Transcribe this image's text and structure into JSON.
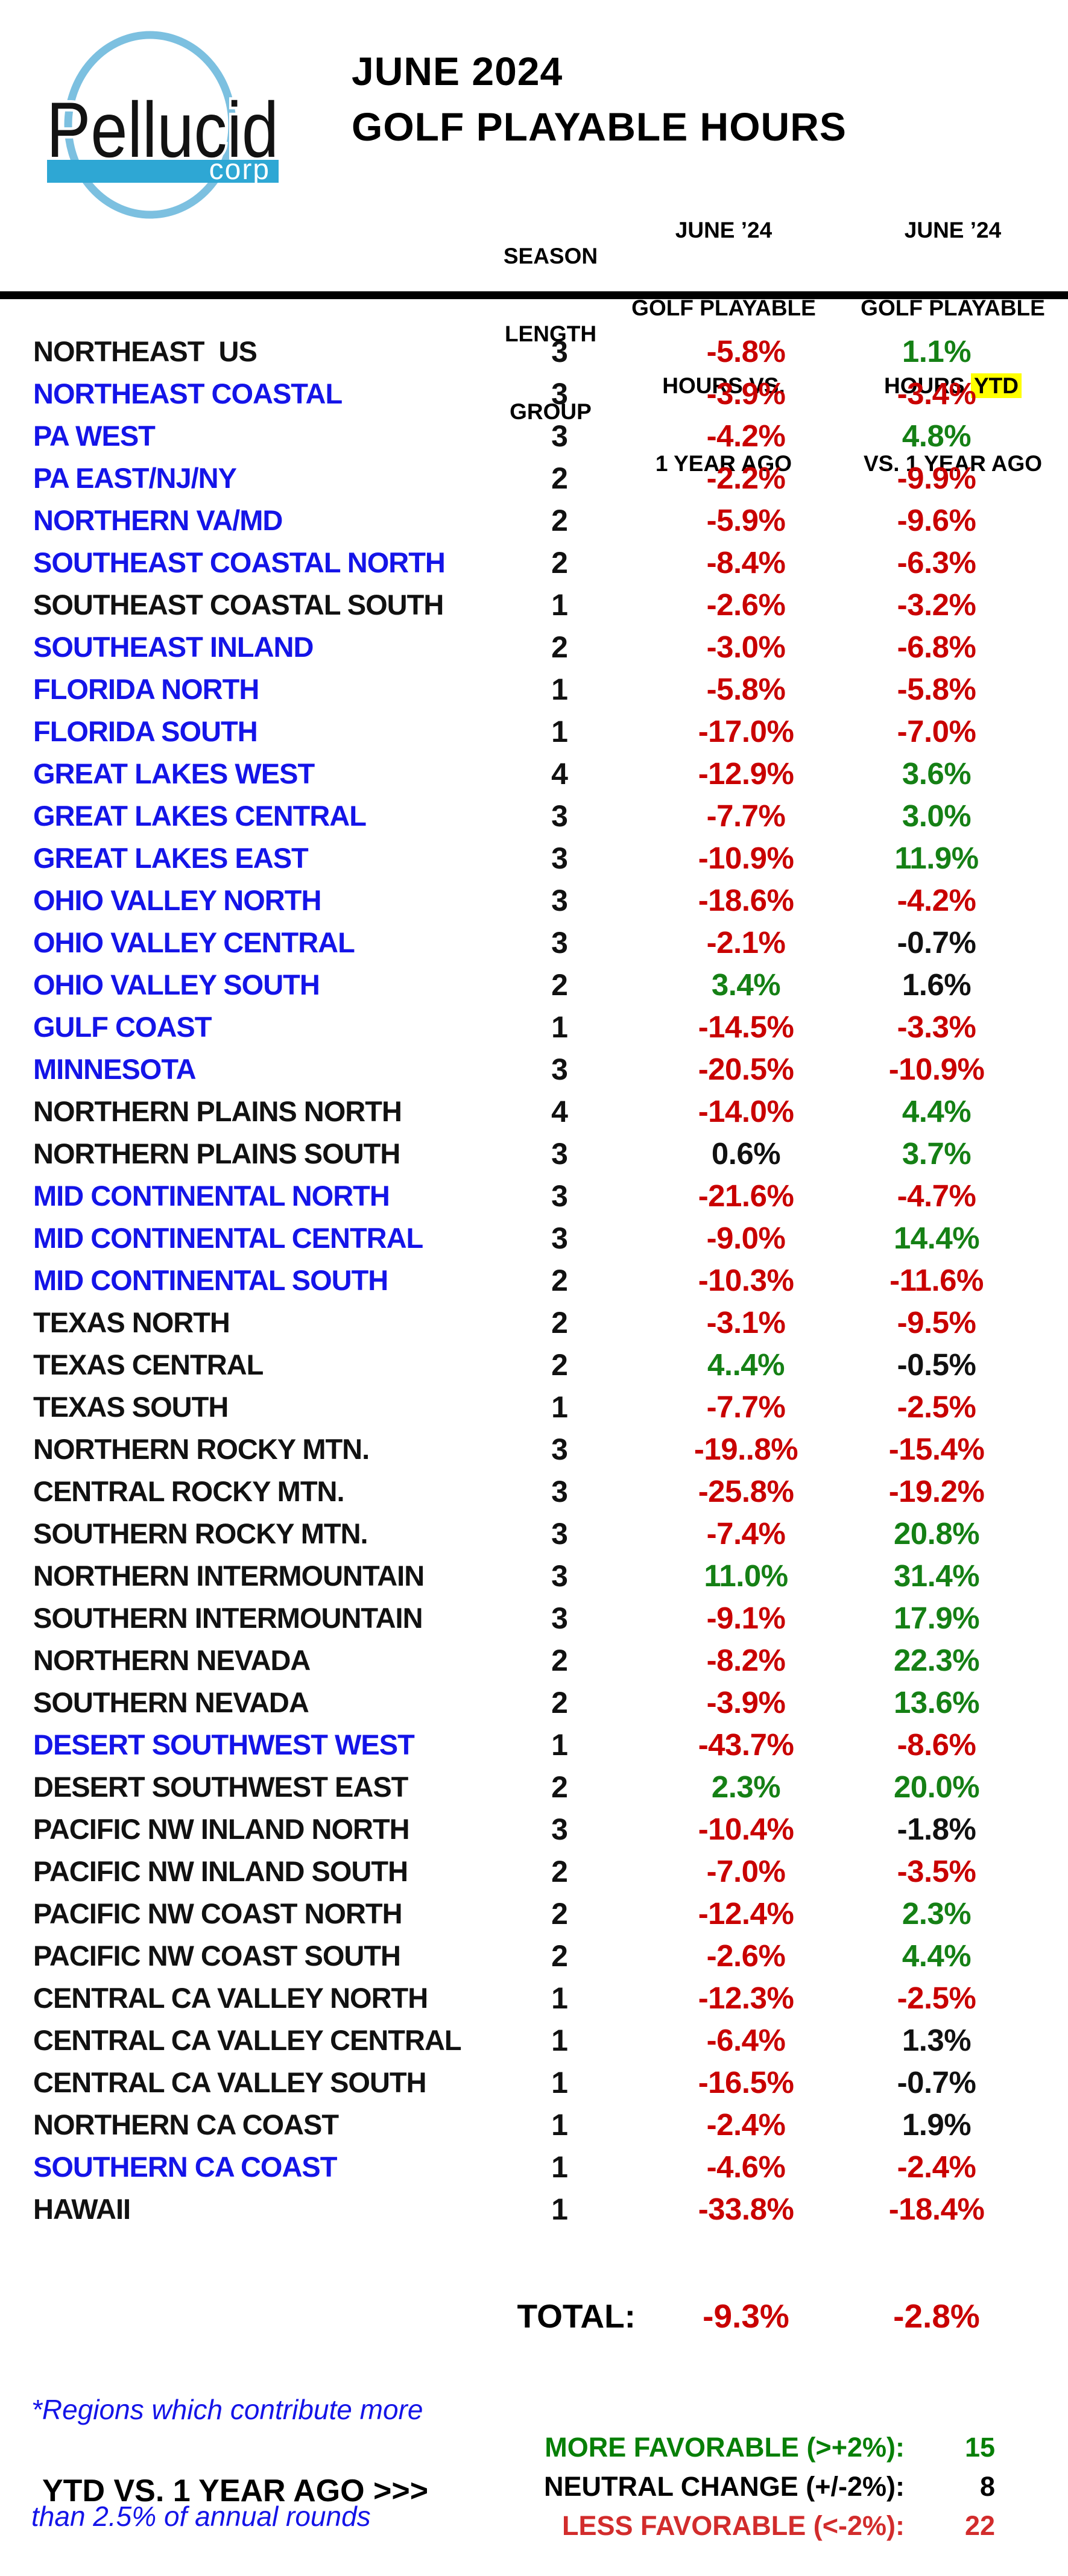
{
  "header": {
    "logo": {
      "brand": "Pellucid",
      "sub": "corp"
    },
    "title_line1": "JUNE 2024",
    "title_line2": "GOLF PLAYABLE HOURS",
    "col_season": [
      "SEASON",
      "LENGTH",
      "GROUP"
    ],
    "col_june": [
      "JUNE ’24",
      "GOLF PLAYABLE",
      "HOURS VS.",
      "1 YEAR AGO"
    ],
    "col_ytd": {
      "line1": "JUNE ’24",
      "line2": "GOLF PLAYABLE",
      "line3_pre": "HOURS ",
      "line3_highlight": "YTD",
      "line4": "VS. 1 YEAR AGO"
    }
  },
  "colors": {
    "region_blue": "#1414E8",
    "value_red": "#C90000",
    "value_green": "#158015",
    "value_black": "#111111",
    "highlight_yellow": "#FFFF00",
    "legend_red": "#D22C2C",
    "legend_green": "#077F07",
    "logo_circle_blue": "#7CC0E0",
    "logo_band_blue": "#2EA7D4"
  },
  "regions": [
    {
      "name": "NORTHEAST  US",
      "name_c": "black",
      "group": "3",
      "june": "-5.8%",
      "june_c": "red",
      "ytd": "1.1%",
      "ytd_c": "green"
    },
    {
      "name": "NORTHEAST COASTAL",
      "name_c": "blue",
      "group": "3",
      "june": "-3.9%",
      "june_c": "red",
      "ytd": "-3.4%",
      "ytd_c": "red"
    },
    {
      "name": "PA WEST",
      "name_c": "blue",
      "group": "3",
      "june": "-4.2%",
      "june_c": "red",
      "ytd": "4.8%",
      "ytd_c": "green"
    },
    {
      "name": "PA EAST/NJ/NY",
      "name_c": "blue",
      "group": "2",
      "june": "-2.2%",
      "june_c": "red",
      "ytd": "-9.9%",
      "ytd_c": "red"
    },
    {
      "name": "NORTHERN VA/MD",
      "name_c": "blue",
      "group": "2",
      "june": "-5.9%",
      "june_c": "red",
      "ytd": "-9.6%",
      "ytd_c": "red"
    },
    {
      "name": "SOUTHEAST COASTAL NORTH",
      "name_c": "blue",
      "group": "2",
      "june": "-8.4%",
      "june_c": "red",
      "ytd": "-6.3%",
      "ytd_c": "red"
    },
    {
      "name": "SOUTHEAST COASTAL SOUTH",
      "name_c": "black",
      "group": "1",
      "june": "-2.6%",
      "june_c": "red",
      "ytd": "-3.2%",
      "ytd_c": "red"
    },
    {
      "name": "SOUTHEAST INLAND",
      "name_c": "blue",
      "group": "2",
      "june": "-3.0%",
      "june_c": "red",
      "ytd": "-6.8%",
      "ytd_c": "red"
    },
    {
      "name": "FLORIDA NORTH",
      "name_c": "blue",
      "group": "1",
      "june": "-5.8%",
      "june_c": "red",
      "ytd": "-5.8%",
      "ytd_c": "red"
    },
    {
      "name": "FLORIDA SOUTH",
      "name_c": "blue",
      "group": "1",
      "june": "-17.0%",
      "june_c": "red",
      "ytd": "-7.0%",
      "ytd_c": "red"
    },
    {
      "name": "GREAT LAKES WEST",
      "name_c": "blue",
      "group": "4",
      "june": "-12.9%",
      "june_c": "red",
      "ytd": "3.6%",
      "ytd_c": "green"
    },
    {
      "name": "GREAT LAKES CENTRAL",
      "name_c": "blue",
      "group": "3",
      "june": "-7.7%",
      "june_c": "red",
      "ytd": "3.0%",
      "ytd_c": "green"
    },
    {
      "name": "GREAT LAKES EAST",
      "name_c": "blue",
      "group": "3",
      "june": "-10.9%",
      "june_c": "red",
      "ytd": "11.9%",
      "ytd_c": "green"
    },
    {
      "name": "OHIO VALLEY NORTH",
      "name_c": "blue",
      "group": "3",
      "june": "-18.6%",
      "june_c": "red",
      "ytd": "-4.2%",
      "ytd_c": "red"
    },
    {
      "name": "OHIO VALLEY CENTRAL",
      "name_c": "blue",
      "group": "3",
      "june": "-2.1%",
      "june_c": "red",
      "ytd": "-0.7%",
      "ytd_c": "black"
    },
    {
      "name": "OHIO VALLEY SOUTH",
      "name_c": "blue",
      "group": "2",
      "june": "3.4%",
      "june_c": "green",
      "ytd": "1.6%",
      "ytd_c": "black"
    },
    {
      "name": "GULF COAST",
      "name_c": "blue",
      "group": "1",
      "june": "-14.5%",
      "june_c": "red",
      "ytd": "-3.3%",
      "ytd_c": "red"
    },
    {
      "name": "MINNESOTA",
      "name_c": "blue",
      "group": "3",
      "june": "-20.5%",
      "june_c": "red",
      "ytd": "-10.9%",
      "ytd_c": "red"
    },
    {
      "name": "NORTHERN PLAINS NORTH",
      "name_c": "black",
      "group": "4",
      "june": "-14.0%",
      "june_c": "red",
      "ytd": "4.4%",
      "ytd_c": "green"
    },
    {
      "name": "NORTHERN PLAINS SOUTH",
      "name_c": "black",
      "group": "3",
      "june": "0.6%",
      "june_c": "black",
      "ytd": "3.7%",
      "ytd_c": "green"
    },
    {
      "name": "MID CONTINENTAL NORTH",
      "name_c": "blue",
      "group": "3",
      "june": "-21.6%",
      "june_c": "red",
      "ytd": "-4.7%",
      "ytd_c": "red"
    },
    {
      "name": "MID CONTINENTAL CENTRAL",
      "name_c": "blue",
      "group": "3",
      "june": "-9.0%",
      "june_c": "red",
      "ytd": "14.4%",
      "ytd_c": "green"
    },
    {
      "name": "MID CONTINENTAL SOUTH",
      "name_c": "blue",
      "group": "2",
      "june": "-10.3%",
      "june_c": "red",
      "ytd": "-11.6%",
      "ytd_c": "red"
    },
    {
      "name": "TEXAS NORTH",
      "name_c": "black",
      "group": "2",
      "june": "-3.1%",
      "june_c": "red",
      "ytd": "-9.5%",
      "ytd_c": "red"
    },
    {
      "name": "TEXAS CENTRAL",
      "name_c": "black",
      "group": "2",
      "june": "4..4%",
      "june_c": "green",
      "ytd": "-0.5%",
      "ytd_c": "black"
    },
    {
      "name": "TEXAS SOUTH",
      "name_c": "black",
      "group": "1",
      "june": "-7.7%",
      "june_c": "red",
      "ytd": "-2.5%",
      "ytd_c": "red"
    },
    {
      "name": "NORTHERN ROCKY MTN.",
      "name_c": "black",
      "group": "3",
      "june": "-19..8%",
      "june_c": "red",
      "ytd": "-15.4%",
      "ytd_c": "red"
    },
    {
      "name": "CENTRAL ROCKY MTN.",
      "name_c": "black",
      "group": "3",
      "june": "-25.8%",
      "june_c": "red",
      "ytd": "-19.2%",
      "ytd_c": "red"
    },
    {
      "name": "SOUTHERN ROCKY MTN.",
      "name_c": "black",
      "group": "3",
      "june": "-7.4%",
      "june_c": "red",
      "ytd": "20.8%",
      "ytd_c": "green"
    },
    {
      "name": "NORTHERN INTERMOUNTAIN",
      "name_c": "black",
      "group": "3",
      "june": "11.0%",
      "june_c": "green",
      "ytd": "31.4%",
      "ytd_c": "green"
    },
    {
      "name": "SOUTHERN INTERMOUNTAIN",
      "name_c": "black",
      "group": "3",
      "june": "-9.1%",
      "june_c": "red",
      "ytd": "17.9%",
      "ytd_c": "green"
    },
    {
      "name": "NORTHERN NEVADA",
      "name_c": "black",
      "group": "2",
      "june": "-8.2%",
      "june_c": "red",
      "ytd": "22.3%",
      "ytd_c": "green"
    },
    {
      "name": "SOUTHERN NEVADA",
      "name_c": "black",
      "group": "2",
      "june": "-3.9%",
      "june_c": "red",
      "ytd": "13.6%",
      "ytd_c": "green"
    },
    {
      "name": "DESERT SOUTHWEST WEST",
      "name_c": "blue",
      "group": "1",
      "june": "-43.7%",
      "june_c": "red",
      "ytd": "-8.6%",
      "ytd_c": "red"
    },
    {
      "name": "DESERT SOUTHWEST EAST",
      "name_c": "black",
      "group": "2",
      "june": "2.3%",
      "june_c": "green",
      "ytd": "20.0%",
      "ytd_c": "green"
    },
    {
      "name": "PACIFIC NW INLAND NORTH",
      "name_c": "black",
      "group": "3",
      "june": "-10.4%",
      "june_c": "red",
      "ytd": "-1.8%",
      "ytd_c": "black"
    },
    {
      "name": "PACIFIC NW INLAND SOUTH",
      "name_c": "black",
      "group": "2",
      "june": "-7.0%",
      "june_c": "red",
      "ytd": "-3.5%",
      "ytd_c": "red"
    },
    {
      "name": "PACIFIC NW COAST NORTH",
      "name_c": "black",
      "group": "2",
      "june": "-12.4%",
      "june_c": "red",
      "ytd": "2.3%",
      "ytd_c": "green"
    },
    {
      "name": "PACIFIC NW COAST SOUTH",
      "name_c": "black",
      "group": "2",
      "june": "-2.6%",
      "june_c": "red",
      "ytd": "4.4%",
      "ytd_c": "green"
    },
    {
      "name": "CENTRAL CA VALLEY NORTH",
      "name_c": "black",
      "group": "1",
      "june": "-12.3%",
      "june_c": "red",
      "ytd": "-2.5%",
      "ytd_c": "red"
    },
    {
      "name": "CENTRAL CA VALLEY CENTRAL",
      "name_c": "black",
      "group": "1",
      "june": "-6.4%",
      "june_c": "red",
      "ytd": "1.3%",
      "ytd_c": "black"
    },
    {
      "name": "CENTRAL CA VALLEY SOUTH",
      "name_c": "black",
      "group": "1",
      "june": "-16.5%",
      "june_c": "red",
      "ytd": "-0.7%",
      "ytd_c": "black"
    },
    {
      "name": "NORTHERN CA COAST",
      "name_c": "black",
      "group": "1",
      "june": "-2.4%",
      "june_c": "red",
      "ytd": "1.9%",
      "ytd_c": "black"
    },
    {
      "name": "SOUTHERN CA COAST",
      "name_c": "blue",
      "group": "1",
      "june": "-4.6%",
      "june_c": "red",
      "ytd": "-2.4%",
      "ytd_c": "red"
    },
    {
      "name": "HAWAII",
      "name_c": "black",
      "group": "1",
      "june": "-33.8%",
      "june_c": "red",
      "ytd": "-18.4%",
      "ytd_c": "red"
    }
  ],
  "total": {
    "label": "TOTAL:",
    "june": "-9.3%",
    "ytd": "-2.8%"
  },
  "footnote": {
    "line1": "*Regions which contribute more",
    "line2": "than 2.5% of annual rounds"
  },
  "legend": {
    "lead": "YTD VS. 1 YEAR AGO >>>",
    "items": [
      {
        "label": "MORE FAVORABLE (>+2%):",
        "value": "15",
        "color": "green"
      },
      {
        "label": "NEUTRAL CHANGE (+/-2%):",
        "value": "8",
        "color": "black"
      },
      {
        "label": "LESS FAVORABLE (<-2%):",
        "value": "22",
        "color": "red"
      }
    ]
  },
  "chart_data": {
    "type": "table",
    "title": "JUNE 2024 GOLF PLAYABLE HOURS",
    "columns": [
      "REGION",
      "SEASON LENGTH GROUP",
      "JUNE ’24 GOLF PLAYABLE HOURS VS. 1 YEAR AGO",
      "JUNE ’24 GOLF PLAYABLE HOURS YTD VS. 1 YEAR AGO"
    ],
    "rows": [
      [
        "NORTHEAST  US",
        3,
        "-5.8%",
        "1.1%"
      ],
      [
        "NORTHEAST COASTAL",
        3,
        "-3.9%",
        "-3.4%"
      ],
      [
        "PA WEST",
        3,
        "-4.2%",
        "4.8%"
      ],
      [
        "PA EAST/NJ/NY",
        2,
        "-2.2%",
        "-9.9%"
      ],
      [
        "NORTHERN VA/MD",
        2,
        "-5.9%",
        "-9.6%"
      ],
      [
        "SOUTHEAST COASTAL NORTH",
        2,
        "-8.4%",
        "-6.3%"
      ],
      [
        "SOUTHEAST COASTAL SOUTH",
        1,
        "-2.6%",
        "-3.2%"
      ],
      [
        "SOUTHEAST INLAND",
        2,
        "-3.0%",
        "-6.8%"
      ],
      [
        "FLORIDA NORTH",
        1,
        "-5.8%",
        "-5.8%"
      ],
      [
        "FLORIDA SOUTH",
        1,
        "-17.0%",
        "-7.0%"
      ],
      [
        "GREAT LAKES WEST",
        4,
        "-12.9%",
        "3.6%"
      ],
      [
        "GREAT LAKES CENTRAL",
        3,
        "-7.7%",
        "3.0%"
      ],
      [
        "GREAT LAKES EAST",
        3,
        "-10.9%",
        "11.9%"
      ],
      [
        "OHIO VALLEY NORTH",
        3,
        "-18.6%",
        "-4.2%"
      ],
      [
        "OHIO VALLEY CENTRAL",
        3,
        "-2.1%",
        "-0.7%"
      ],
      [
        "OHIO VALLEY SOUTH",
        2,
        "3.4%",
        "1.6%"
      ],
      [
        "GULF COAST",
        1,
        "-14.5%",
        "-3.3%"
      ],
      [
        "MINNESOTA",
        3,
        "-20.5%",
        "-10.9%"
      ],
      [
        "NORTHERN PLAINS NORTH",
        4,
        "-14.0%",
        "4.4%"
      ],
      [
        "NORTHERN PLAINS SOUTH",
        3,
        "0.6%",
        "3.7%"
      ],
      [
        "MID CONTINENTAL NORTH",
        3,
        "-21.6%",
        "-4.7%"
      ],
      [
        "MID CONTINENTAL CENTRAL",
        3,
        "-9.0%",
        "14.4%"
      ],
      [
        "MID CONTINENTAL SOUTH",
        2,
        "-10.3%",
        "-11.6%"
      ],
      [
        "TEXAS NORTH",
        2,
        "-3.1%",
        "-9.5%"
      ],
      [
        "TEXAS CENTRAL",
        2,
        "4..4%",
        "-0.5%"
      ],
      [
        "TEXAS SOUTH",
        1,
        "-7.7%",
        "-2.5%"
      ],
      [
        "NORTHERN ROCKY MTN.",
        3,
        "-19..8%",
        "-15.4%"
      ],
      [
        "CENTRAL ROCKY MTN.",
        3,
        "-25.8%",
        "-19.2%"
      ],
      [
        "SOUTHERN ROCKY MTN.",
        3,
        "-7.4%",
        "20.8%"
      ],
      [
        "NORTHERN INTERMOUNTAIN",
        3,
        "11.0%",
        "31.4%"
      ],
      [
        "SOUTHERN INTERMOUNTAIN",
        3,
        "-9.1%",
        "17.9%"
      ],
      [
        "NORTHERN NEVADA",
        2,
        "-8.2%",
        "22.3%"
      ],
      [
        "SOUTHERN NEVADA",
        2,
        "-3.9%",
        "13.6%"
      ],
      [
        "DESERT SOUTHWEST WEST",
        1,
        "-43.7%",
        "-8.6%"
      ],
      [
        "DESERT SOUTHWEST EAST",
        2,
        "2.3%",
        "20.0%"
      ],
      [
        "PACIFIC NW INLAND NORTH",
        3,
        "-10.4%",
        "-1.8%"
      ],
      [
        "PACIFIC NW INLAND SOUTH",
        2,
        "-7.0%",
        "-3.5%"
      ],
      [
        "PACIFIC NW COAST NORTH",
        2,
        "-12.4%",
        "2.3%"
      ],
      [
        "PACIFIC NW COAST SOUTH",
        2,
        "-2.6%",
        "4.4%"
      ],
      [
        "CENTRAL CA VALLEY NORTH",
        1,
        "-12.3%",
        "-2.5%"
      ],
      [
        "CENTRAL CA VALLEY CENTRAL",
        1,
        "-6.4%",
        "1.3%"
      ],
      [
        "CENTRAL CA VALLEY SOUTH",
        1,
        "-16.5%",
        "-0.7%"
      ],
      [
        "NORTHERN CA COAST",
        1,
        "-2.4%",
        "1.9%"
      ],
      [
        "SOUTHERN CA COAST",
        1,
        "-4.6%",
        "-2.4%"
      ],
      [
        "HAWAII",
        1,
        "-33.8%",
        "-18.4%"
      ]
    ],
    "total_row": [
      "TOTAL:",
      null,
      "-9.3%",
      "-2.8%"
    ],
    "summary": {
      "more_favorable_gt_plus2pct": 15,
      "neutral_change_plus_minus2pct": 8,
      "less_favorable_lt_minus2pct": 22
    },
    "notes": "Blue region names = regions which contribute more than 2.5% of annual rounds; red = less favorable, green = more favorable, black = neutral"
  }
}
